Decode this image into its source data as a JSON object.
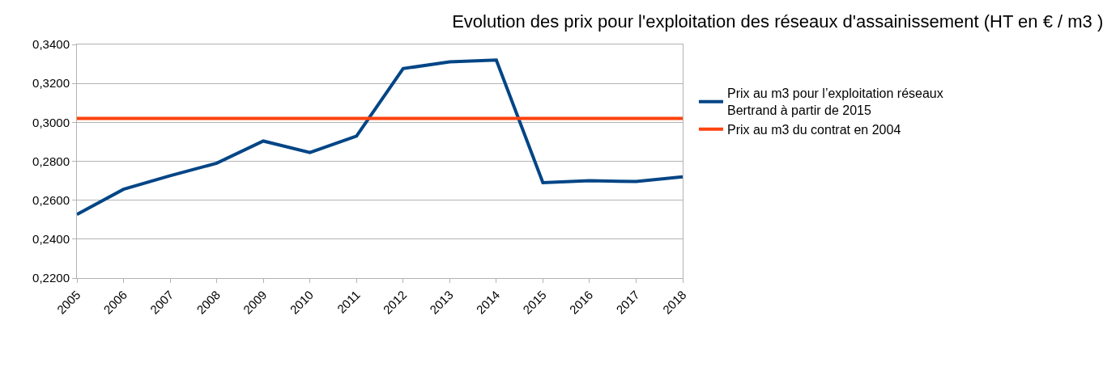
{
  "chart_data": {
    "type": "line",
    "title": "Evolution des prix pour l'exploitation des réseaux d'assainissement (HT en € / m3 )",
    "categories": [
      "2005",
      "2006",
      "2007",
      "2008",
      "2009",
      "2010",
      "2011",
      "2012",
      "2013",
      "2014",
      "2015",
      "2016",
      "2017",
      "2018"
    ],
    "series": [
      {
        "name": "Prix au m3 pour l’exploitation réseaux Bertrand à partir de 2015",
        "color": "#004586",
        "values": [
          0.2527,
          0.2656,
          0.2726,
          0.279,
          0.2904,
          0.2845,
          0.2929,
          0.3276,
          0.3311,
          0.332,
          0.269,
          0.27,
          0.2696,
          0.272
        ]
      },
      {
        "name": "Prix au m3 du contrat en 2004",
        "color": "#ff420e",
        "values": [
          0.302,
          0.302,
          0.302,
          0.302,
          0.302,
          0.302,
          0.302,
          0.302,
          0.302,
          0.302,
          0.302,
          0.302,
          0.302,
          0.302
        ]
      }
    ],
    "ylim": [
      0.22,
      0.34
    ],
    "yticks": [
      {
        "value": 0.22,
        "label": "0,2200"
      },
      {
        "value": 0.24,
        "label": "0,2400"
      },
      {
        "value": 0.26,
        "label": "0,2600"
      },
      {
        "value": 0.28,
        "label": "0,2800"
      },
      {
        "value": 0.3,
        "label": "0,3000"
      },
      {
        "value": 0.32,
        "label": "0,3200"
      },
      {
        "value": 0.34,
        "label": "0,3400"
      }
    ],
    "grid": "y",
    "legend": "right",
    "marker": "none",
    "line_style": "solid"
  }
}
